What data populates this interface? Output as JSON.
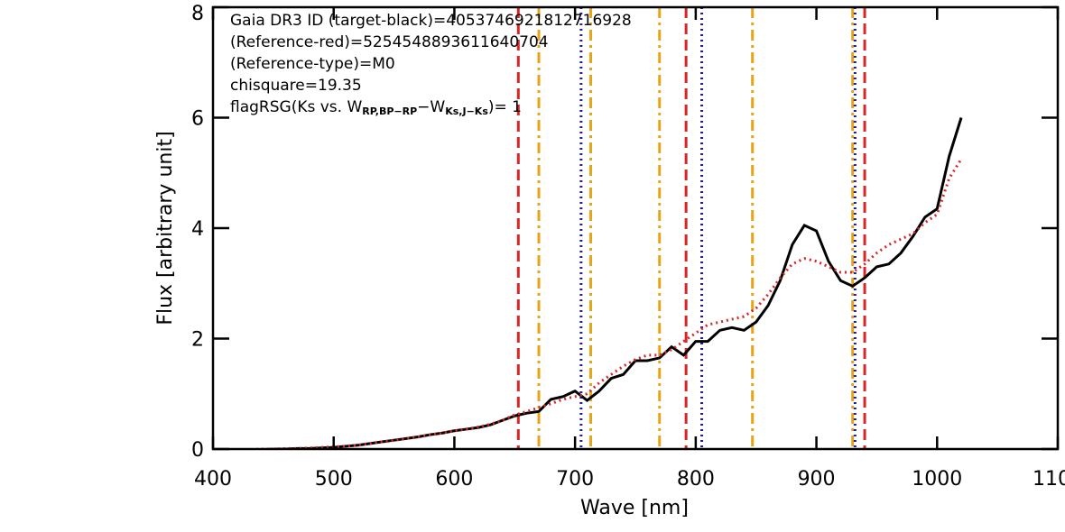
{
  "chart_data": {
    "type": "line",
    "xlabel": "Wave [nm]",
    "ylabel": "Flux [arbitrary unit]",
    "annotations": [
      "Gaia DR3 ID (target-black)=4053746921812716928",
      "(Reference-red)=5254548893611640704",
      "(Reference-type)=M0",
      "chisquare=19.35"
    ],
    "flag_annotation": [
      "flagRSG(Ks vs. W",
      "RP,BP−RP",
      "−W",
      "Ks,J−Ks",
      ")= 1"
    ],
    "x": [
      400,
      410,
      420,
      430,
      440,
      450,
      460,
      470,
      480,
      490,
      500,
      510,
      520,
      530,
      540,
      550,
      560,
      570,
      580,
      590,
      600,
      610,
      620,
      630,
      640,
      650,
      660,
      670,
      680,
      690,
      700,
      710,
      720,
      730,
      740,
      750,
      760,
      770,
      780,
      790,
      800,
      810,
      820,
      830,
      840,
      850,
      860,
      870,
      880,
      890,
      900,
      910,
      920,
      930,
      940,
      950,
      960,
      970,
      980,
      990,
      1000,
      1010,
      1020
    ],
    "series": [
      {
        "color": "#000000",
        "dash": "solid",
        "values": [
          -0.03,
          -0.02,
          -0.02,
          -0.01,
          -0.01,
          0,
          0,
          0.01,
          0.01,
          0.02,
          0.03,
          0.05,
          0.07,
          0.1,
          0.13,
          0.16,
          0.19,
          0.22,
          0.26,
          0.29,
          0.33,
          0.36,
          0.39,
          0.44,
          0.52,
          0.6,
          0.65,
          0.68,
          0.9,
          0.95,
          1.05,
          0.88,
          1.05,
          1.28,
          1.35,
          1.6,
          1.6,
          1.65,
          1.85,
          1.7,
          1.95,
          1.95,
          2.15,
          2.2,
          2.15,
          2.3,
          2.6,
          3.05,
          3.7,
          4.05,
          3.95,
          3.4,
          3.05,
          2.95,
          3.1,
          3.3,
          3.35,
          3.55,
          3.85,
          4.2,
          4.35,
          5.3,
          6.0
        ]
      },
      {
        "color": "#d62728",
        "dash": "dotted",
        "values": [
          -0.02,
          -0.02,
          -0.01,
          -0.01,
          0,
          0,
          0.01,
          0.01,
          0.02,
          0.03,
          0.04,
          0.05,
          0.07,
          0.1,
          0.13,
          0.16,
          0.19,
          0.22,
          0.26,
          0.29,
          0.33,
          0.36,
          0.4,
          0.45,
          0.52,
          0.62,
          0.68,
          0.75,
          0.82,
          0.9,
          0.95,
          1.0,
          1.2,
          1.35,
          1.5,
          1.62,
          1.7,
          1.7,
          1.8,
          1.95,
          2.1,
          2.25,
          2.3,
          2.35,
          2.4,
          2.55,
          2.8,
          3.1,
          3.35,
          3.45,
          3.4,
          3.3,
          3.2,
          3.2,
          3.35,
          3.55,
          3.7,
          3.8,
          3.9,
          4.1,
          4.25,
          4.9,
          5.25
        ]
      }
    ],
    "reference_lines": [
      {
        "color": "#d62728",
        "dash": "dashed",
        "x": [
          653,
          792,
          940
        ]
      },
      {
        "color": "#e8a317",
        "dash": "dashdot",
        "x": [
          670,
          713,
          770,
          847,
          930
        ]
      },
      {
        "color": "#1f1f8f",
        "dash": "dotted",
        "x": [
          705,
          805,
          932
        ]
      }
    ],
    "xlim": [
      400,
      1100
    ],
    "xticks": [
      400,
      500,
      600,
      700,
      800,
      900,
      1000,
      1100
    ],
    "ylim": [
      0,
      8
    ],
    "yticks": [
      0,
      2,
      4,
      6,
      8
    ]
  }
}
